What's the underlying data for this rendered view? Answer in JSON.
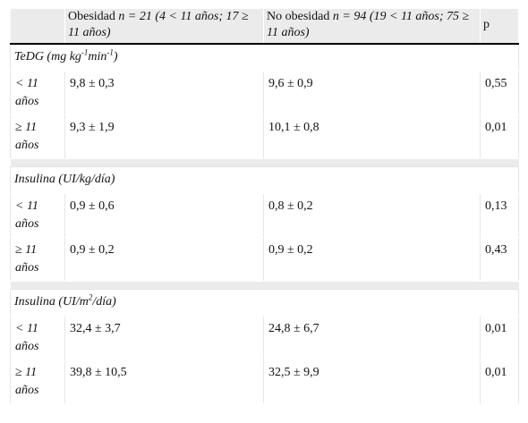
{
  "table": {
    "headers": {
      "col0": "",
      "col1_prefix": "Obesidad ",
      "col1_detail": "n = 21 (4 < 11 años; 17 ≥ 11 años)",
      "col2_prefix": "No obesidad ",
      "col2_detail": "n = 94 (19 < 11 años; 75 ≥ 11 años)",
      "col3": "p"
    },
    "sections": [
      {
        "title_a": "TeDG (mg kg",
        "sup1": "-1",
        "title_b": "min",
        "sup2": "-1",
        "title_c": ")",
        "rows": [
          {
            "group": "< 11 años",
            "obesidad": "9,8 ± 0,3",
            "no_obesidad": "9,6 ± 0,9",
            "p": "0,55"
          },
          {
            "group": "≥ 11 años",
            "obesidad": "9,3 ± 1,9",
            "no_obesidad": "10,1 ± 0,8",
            "p": "0,01"
          }
        ]
      },
      {
        "title": "Insulina (UI/kg/día)",
        "rows": [
          {
            "group": "< 11 años",
            "obesidad": "0,9 ± 0,6",
            "no_obesidad": "0,8 ± 0,2",
            "p": "0,13"
          },
          {
            "group": "≥ 11 años",
            "obesidad": "0,9 ± 0,2",
            "no_obesidad": "0,9 ± 0,2",
            "p": "0,43"
          }
        ]
      },
      {
        "title_a": "Insulina (UI/m",
        "sup1": "2",
        "title_b": "/día)",
        "rows": [
          {
            "group": "< 11 años",
            "obesidad": "32,4 ± 3,7",
            "no_obesidad": "24,8 ± 6,7",
            "p": "0,01"
          },
          {
            "group": "≥ 11 años",
            "obesidad": "39,8 ± 10,5",
            "no_obesidad": "32,5 ± 9,9",
            "p": "0,01"
          }
        ]
      }
    ]
  }
}
